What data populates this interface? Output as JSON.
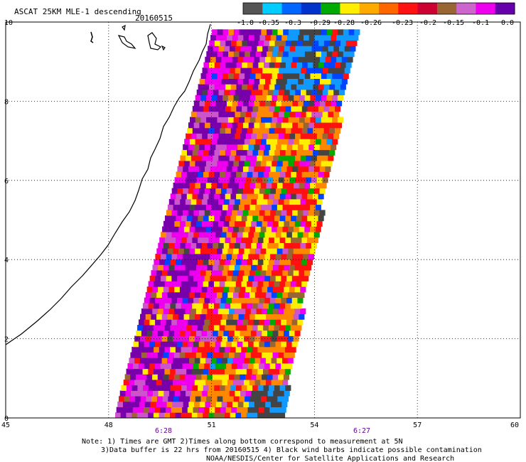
{
  "title": "ASCAT 25KM MLE-1 descending",
  "date": "20160515",
  "colorbar": {
    "colors": [
      "#555555",
      "#00ccff",
      "#0066ff",
      "#0033cc",
      "#00aa00",
      "#ffee00",
      "#ffaa00",
      "#ff6600",
      "#ff1111",
      "#cc0033",
      "#996633",
      "#cc66cc",
      "#ee00ee",
      "#6600aa"
    ],
    "labels": [
      "-1.0",
      "-0.35",
      "-0.3",
      "-0.29",
      "-0.28",
      "-0.26",
      "-0.23",
      "-0.2",
      "-0.15",
      "-0.1",
      "0.0"
    ]
  },
  "y_axis": {
    "ticks": [
      "0",
      "2",
      "4",
      "6",
      "8",
      "10"
    ]
  },
  "x_axis": {
    "ticks": [
      "45",
      "48",
      "51",
      "54",
      "57",
      "60"
    ]
  },
  "pass_times": [
    "6:28",
    "6:27"
  ],
  "notes": {
    "line1": "Note: 1) Times are GMT 2)Times along bottom correspond to measurement at 5N",
    "line2": "3)Data buffer is 22 hrs from 20160515 4) Black wind barbs indicate possible contamination",
    "line3": "NOAA/NESDIS/Center for Satellite Applications and Research"
  },
  "legend_palette": {
    "purple": "#7700aa",
    "magenta": "#ee00ee",
    "pink": "#cc55cc",
    "red": "#ff1111",
    "orange": "#ff8800",
    "yellow": "#ffee00",
    "green": "#00aa00",
    "blue": "#0044ff",
    "lightblue": "#1199ff",
    "gray": "#444444",
    "brown": "#996633"
  }
}
